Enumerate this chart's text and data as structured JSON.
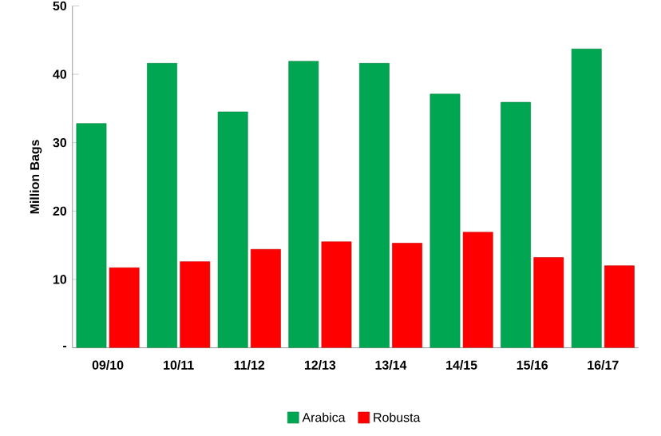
{
  "chart_data": {
    "type": "bar",
    "ylabel": "Million Bags",
    "categories": [
      "09/10",
      "10/11",
      "11/12",
      "12/13",
      "13/14",
      "14/15",
      "15/16",
      "16/17"
    ],
    "series": [
      {
        "name": "Arabica",
        "color": "#00a651",
        "values": [
          32.8,
          41.6,
          34.5,
          41.9,
          41.6,
          37.1,
          35.9,
          43.7
        ]
      },
      {
        "name": "Robusta",
        "color": "#ff0000",
        "values": [
          11.7,
          12.6,
          14.4,
          15.5,
          15.3,
          16.9,
          13.2,
          12.0
        ]
      }
    ],
    "ylim": [
      0,
      50
    ],
    "yticks": [
      {
        "value": 0,
        "label": "-"
      },
      10,
      20,
      30,
      40,
      50
    ],
    "grid": false,
    "legend": "bottom"
  }
}
